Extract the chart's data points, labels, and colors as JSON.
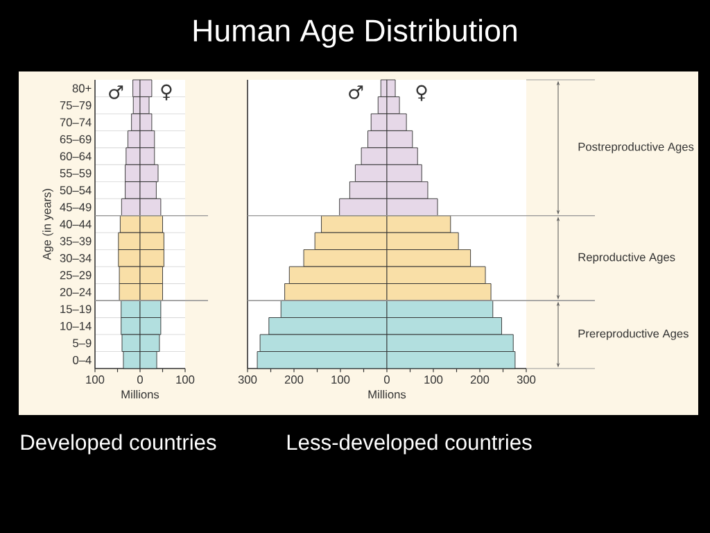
{
  "chart_data": [
    {
      "type": "bar",
      "orientation": "horizontal",
      "stacked": true,
      "xlabel": "Millions",
      "ylabel": "Age (in years)",
      "categories": [
        "80+",
        "75–79",
        "70–74",
        "65–69",
        "60–64",
        "55–59",
        "50–54",
        "45–49",
        "40–44",
        "35–39",
        "30–34",
        "25–29",
        "20–24",
        "15–19",
        "10–14",
        "5–9",
        "0–4"
      ],
      "series": [
        {
          "name": "♂",
          "colors": [
            "#e6d8e8",
            "#e6d8e8",
            "#e6d8e8",
            "#e6d8e8",
            "#e6d8e8",
            "#e6d8e8",
            "#e6d8e8",
            "#e6d8e8",
            "#f9dfa7",
            "#f9dfa7",
            "#f9dfa7",
            "#f9dfa7",
            "#f9dfa7",
            "#b2dfdf",
            "#b2dfdf",
            "#b2dfdf",
            "#b2dfdf"
          ],
          "values": [
            -16,
            -15,
            -19,
            -27,
            -31,
            -33,
            -33,
            -41,
            -44,
            -48,
            -48,
            -46,
            -46,
            -42,
            -42,
            -40,
            -37
          ]
        },
        {
          "name": "♀",
          "colors": [
            "#e6d8e8",
            "#e6d8e8",
            "#e6d8e8",
            "#e6d8e8",
            "#e6d8e8",
            "#e6d8e8",
            "#e6d8e8",
            "#e6d8e8",
            "#f9dfa7",
            "#f9dfa7",
            "#f9dfa7",
            "#f9dfa7",
            "#f9dfa7",
            "#b2dfdf",
            "#b2dfdf",
            "#b2dfdf",
            "#b2dfdf"
          ],
          "values": [
            26,
            20,
            26,
            32,
            32,
            40,
            36,
            46,
            50,
            53,
            53,
            50,
            50,
            46,
            46,
            43,
            37
          ]
        }
      ],
      "xlim": [
        -100,
        100
      ],
      "xticks": [
        {
          "value": -100,
          "label": "100"
        },
        {
          "value": -50,
          "label": null
        },
        0,
        {
          "value": 50,
          "label": null
        },
        100
      ],
      "grid": "y",
      "annotations": [
        "Developed countries"
      ]
    },
    {
      "type": "bar",
      "orientation": "horizontal",
      "stacked": true,
      "title": "Human Age Distribution",
      "xlabel": "Millions",
      "categories": [
        null,
        null,
        null,
        null,
        null,
        null,
        null,
        null,
        null,
        null,
        null,
        null,
        null,
        null,
        null,
        null,
        null
      ],
      "series": [
        {
          "name": "♂",
          "colors": [
            "#e6d8e8",
            "#e6d8e8",
            "#e6d8e8",
            "#e6d8e8",
            "#e6d8e8",
            "#e6d8e8",
            "#e6d8e8",
            "#e6d8e8",
            "#f9dfa7",
            "#f9dfa7",
            "#f9dfa7",
            "#f9dfa7",
            "#f9dfa7",
            "#b2dfdf",
            "#b2dfdf",
            "#b2dfdf",
            "#b2dfdf"
          ],
          "values": [
            -13,
            -19,
            -34,
            -41,
            -55,
            -68,
            -80,
            -102,
            -141,
            -155,
            -179,
            -210,
            -220,
            -228,
            -254,
            -273,
            -279
          ]
        },
        {
          "name": "♀",
          "colors": [
            "#e6d8e8",
            "#e6d8e8",
            "#e6d8e8",
            "#e6d8e8",
            "#e6d8e8",
            "#e6d8e8",
            "#e6d8e8",
            "#e6d8e8",
            "#f9dfa7",
            "#f9dfa7",
            "#f9dfa7",
            "#f9dfa7",
            "#f9dfa7",
            "#b2dfdf",
            "#b2dfdf",
            "#b2dfdf",
            "#b2dfdf"
          ],
          "values": [
            18,
            27,
            42,
            55,
            66,
            75,
            88,
            109,
            137,
            154,
            180,
            212,
            224,
            228,
            247,
            272,
            276
          ]
        }
      ],
      "xlim": [
        -300,
        300
      ],
      "xticks": [
        {
          "value": -300,
          "label": "300"
        },
        {
          "value": -250,
          "label": null
        },
        {
          "value": -200,
          "label": "200"
        },
        {
          "value": -150,
          "label": null
        },
        {
          "value": -100,
          "label": "100"
        },
        {
          "value": -50,
          "label": null
        },
        0,
        {
          "value": 50,
          "label": null
        },
        100,
        {
          "value": 150,
          "label": null
        },
        200,
        {
          "value": 250,
          "label": null
        },
        300
      ],
      "grid": "y",
      "annotations": [
        "Less-developed countries",
        "Postreproductive Ages",
        "Reproductive Ages",
        "Prereproductive Ages"
      ]
    }
  ]
}
